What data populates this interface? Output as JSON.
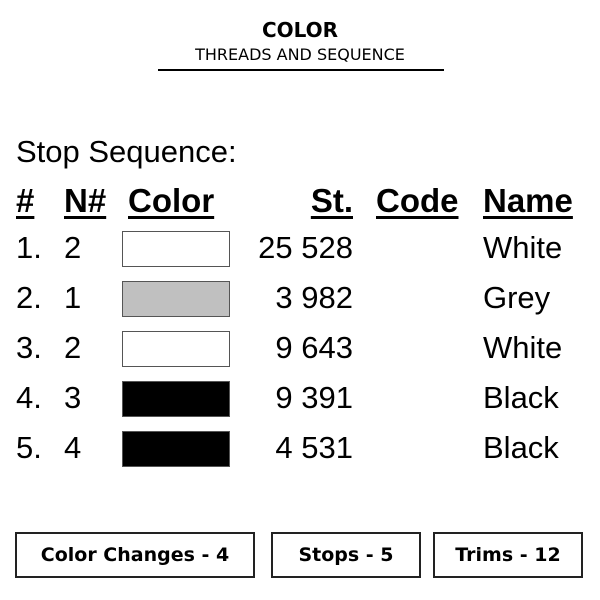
{
  "header": {
    "title": "COLOR",
    "subtitle": "THREADS AND SEQUENCE"
  },
  "section_title": "Stop Sequence:",
  "columns": [
    "#",
    "N#",
    "Color",
    "St.",
    "Code",
    "Name"
  ],
  "rows": [
    {
      "index": "1.",
      "needle": "2",
      "color": "#ffffff",
      "stitches": "25 528",
      "code": "",
      "name": "White"
    },
    {
      "index": "2.",
      "needle": "1",
      "color": "#c0c0c0",
      "stitches": "3 982",
      "code": "",
      "name": "Grey"
    },
    {
      "index": "3.",
      "needle": "2",
      "color": "#ffffff",
      "stitches": "9 643",
      "code": "",
      "name": "White"
    },
    {
      "index": "4.",
      "needle": "3",
      "color": "#000000",
      "stitches": "9 391",
      "code": "",
      "name": "Black"
    },
    {
      "index": "5.",
      "needle": "4",
      "color": "#000000",
      "stitches": "4 531",
      "code": "",
      "name": "Black"
    }
  ],
  "summary": [
    "Color Changes - 4",
    "Stops - 5",
    "Trims - 12"
  ]
}
